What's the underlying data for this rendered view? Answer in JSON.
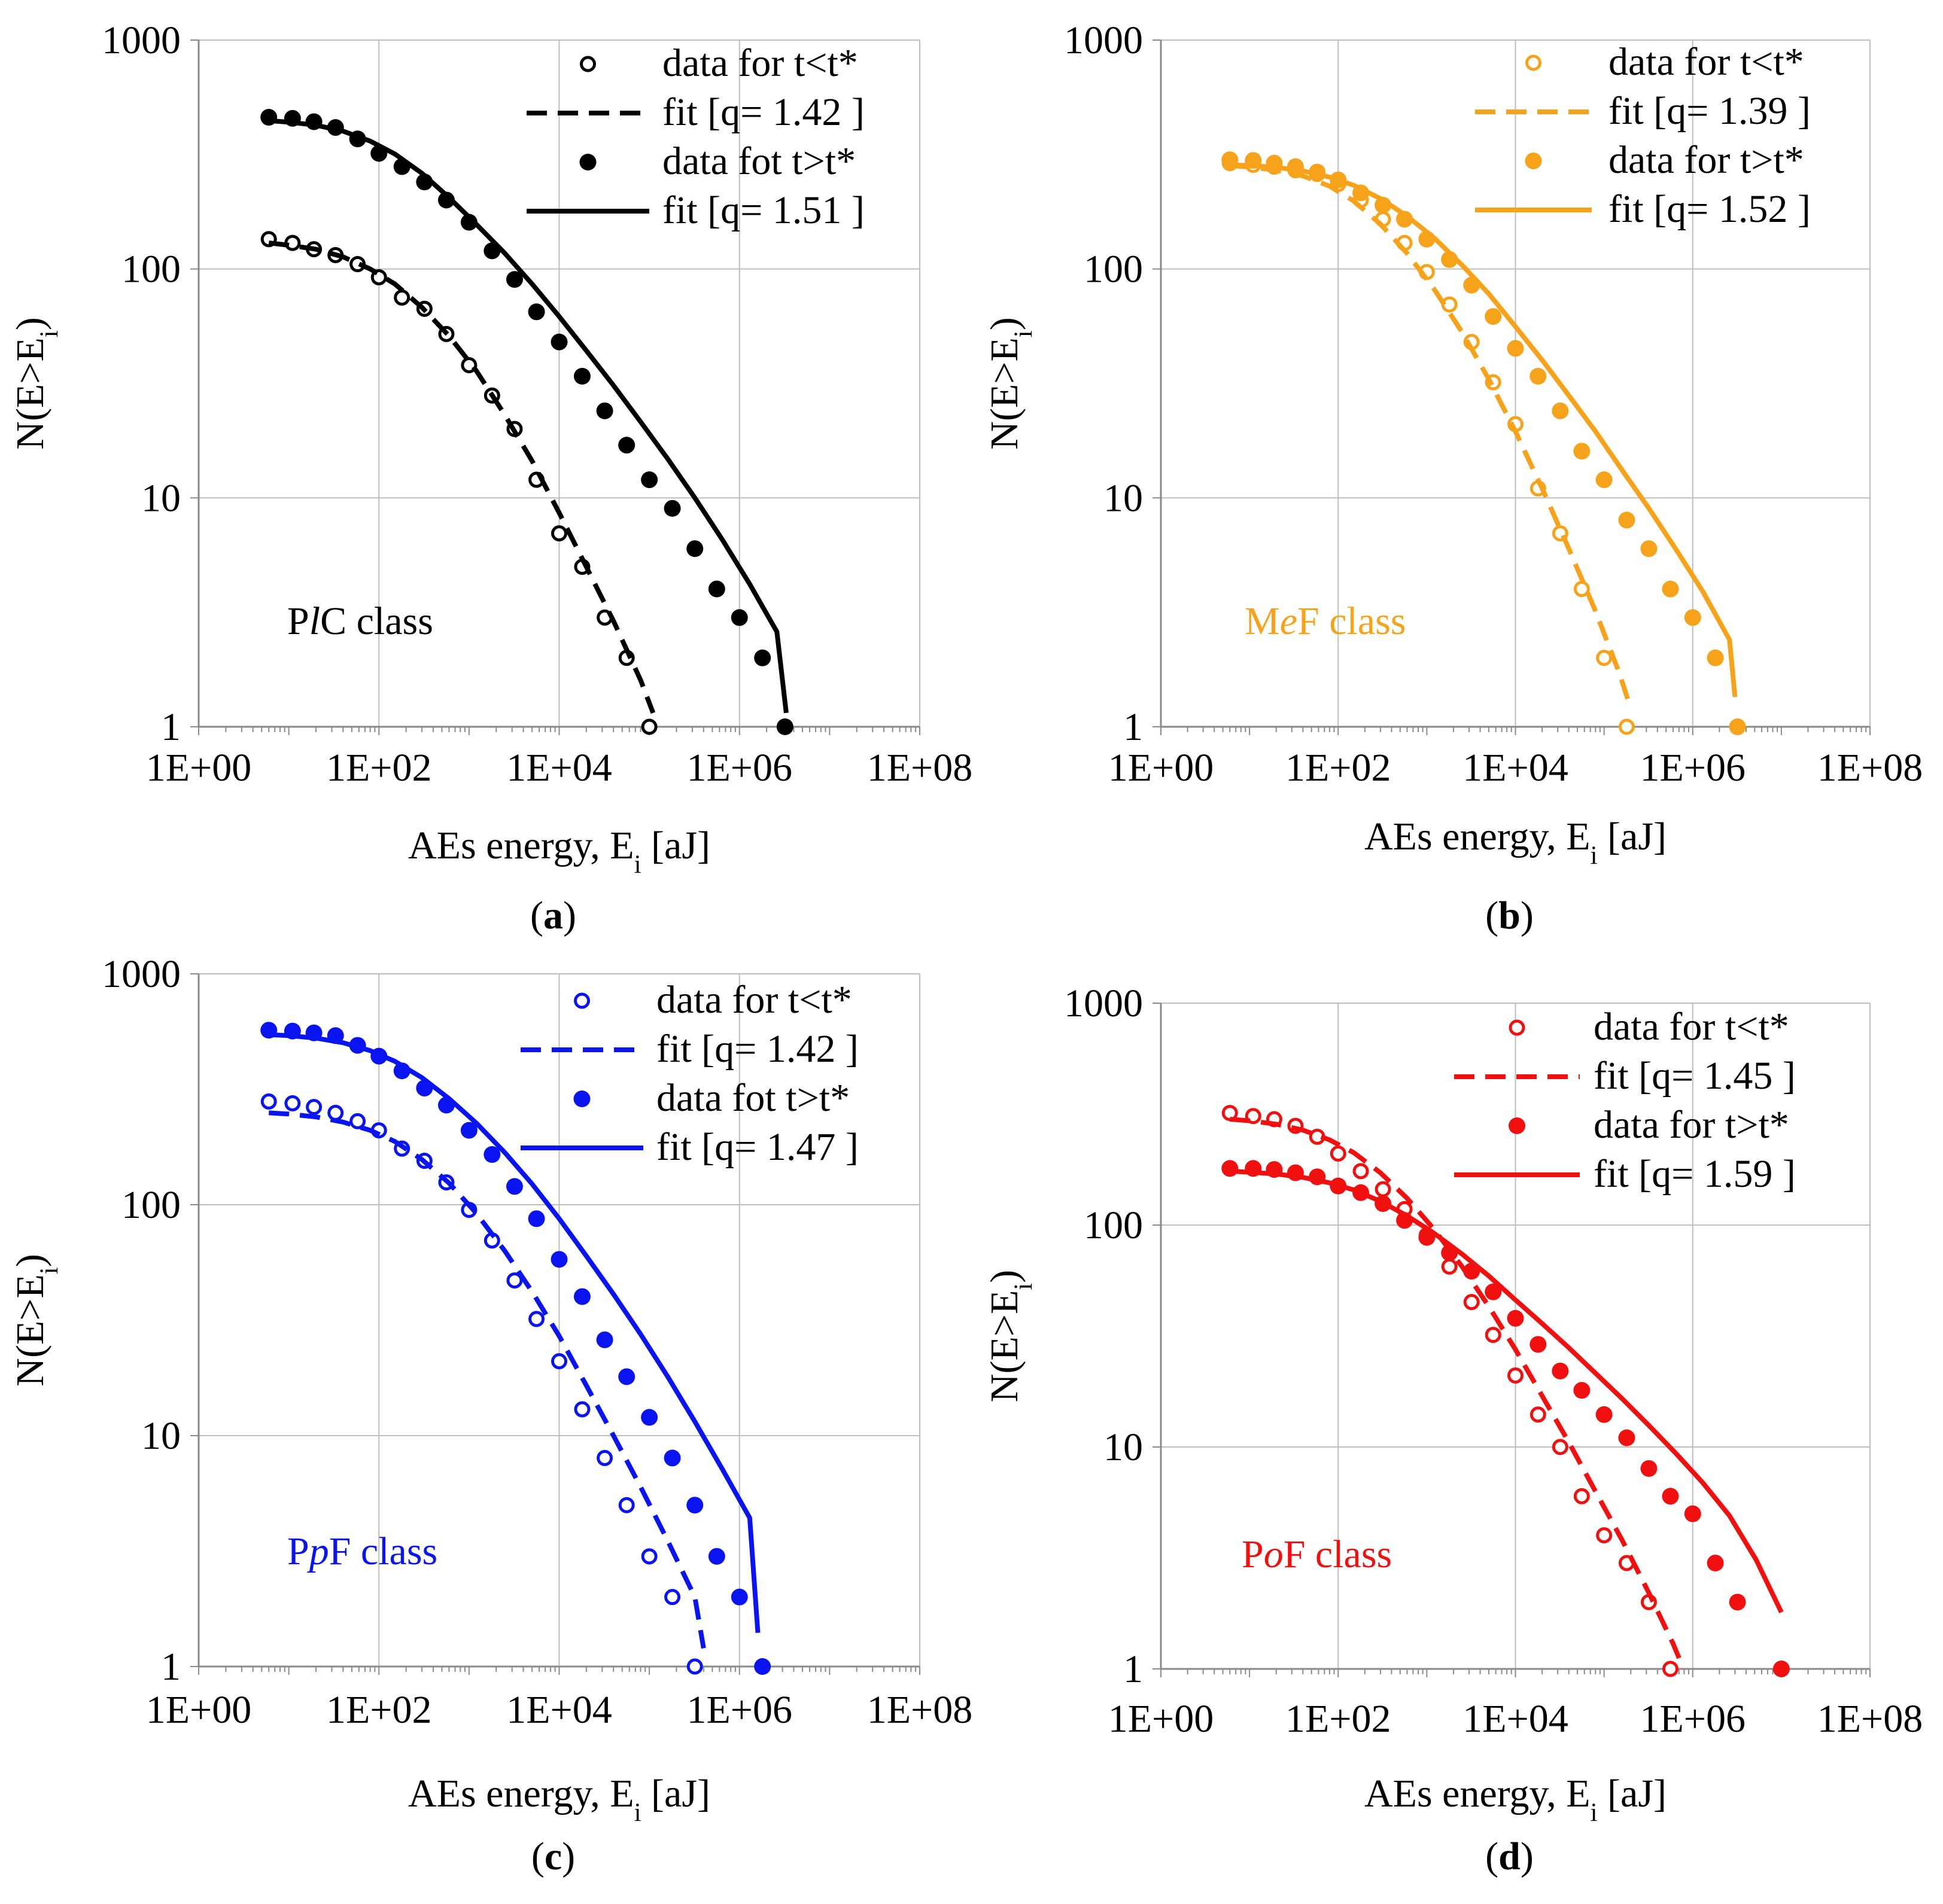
{
  "figure": {
    "panels": [
      {
        "letter": "a",
        "class_label": {
          "prefix": "P",
          "italic": "l",
          "suffix": "C class"
        },
        "color": "#000000",
        "legend": [
          {
            "label": "data for t<t*",
            "kind": "open"
          },
          {
            "label": "fit [q= 1.42 ]",
            "kind": "dashed"
          },
          {
            "label": "data fot t>t*",
            "kind": "filled"
          },
          {
            "label": "fit [q= 1.51 ]",
            "kind": "solid"
          }
        ]
      },
      {
        "letter": "b",
        "class_label": {
          "prefix": "M",
          "italic": "e",
          "suffix": "F class"
        },
        "color": "#F7A21B",
        "legend": [
          {
            "label": "data for t<t*",
            "kind": "open"
          },
          {
            "label": "fit [q= 1.39 ]",
            "kind": "dashed"
          },
          {
            "label": "data for t>t*",
            "kind": "filled"
          },
          {
            "label": "fit [q= 1.52 ]",
            "kind": "solid"
          }
        ]
      },
      {
        "letter": "c",
        "class_label": {
          "prefix": "P",
          "italic": "p",
          "suffix": "F class"
        },
        "color": "#0A14F0",
        "legend": [
          {
            "label": "data for t<t*",
            "kind": "open"
          },
          {
            "label": "fit [q= 1.42 ]",
            "kind": "dashed"
          },
          {
            "label": "data fot t>t*",
            "kind": "filled"
          },
          {
            "label": "fit [q= 1.47 ]",
            "kind": "solid"
          }
        ]
      },
      {
        "letter": "d",
        "class_label": {
          "prefix": "P",
          "italic": "o",
          "suffix": "F class"
        },
        "color": "#F01010",
        "legend": [
          {
            "label": "data for t<t*",
            "kind": "open"
          },
          {
            "label": "fit [q= 1.45 ]",
            "kind": "dashed"
          },
          {
            "label": "data for t>t*",
            "kind": "filled"
          },
          {
            "label": "fit [q= 1.59 ]",
            "kind": "solid"
          }
        ]
      }
    ]
  },
  "chart_data": [
    {
      "type": "scatter",
      "title": "(a) PlC class",
      "xlabel": "AEs energy, Ei [aJ]",
      "ylabel": "N(E>Ei)",
      "xscale": "log",
      "yscale": "log",
      "xlim": [
        1,
        100000000
      ],
      "ylim": [
        1,
        1000
      ],
      "xticks": [
        "1E+00",
        "1E+02",
        "1E+04",
        "1E+06",
        "1E+08"
      ],
      "yticks": [
        "1",
        "10",
        "100",
        "1000"
      ],
      "grid": true,
      "legend_position": "top-right",
      "series": [
        {
          "name": "data for t<t*",
          "style": "open-marker",
          "x": [
            6,
            11,
            19,
            33,
            58,
            100,
            180,
            320,
            560,
            1000,
            1800,
            3200,
            5600,
            10000,
            18000,
            32000,
            56000,
            100000
          ],
          "y": [
            135,
            130,
            122,
            115,
            105,
            92,
            75,
            67,
            52,
            38,
            28,
            20,
            12,
            7,
            5,
            3,
            2,
            1
          ]
        },
        {
          "name": "fit [q= 1.42 ]",
          "style": "dashed-line",
          "q": 1.42,
          "x": [
            6,
            10,
            20,
            40,
            80,
            150,
            300,
            600,
            1200,
            2500,
            5000,
            10000,
            20000,
            40000,
            80000,
            110000
          ],
          "y": [
            130,
            127,
            122,
            113,
            100,
            86,
            68,
            51,
            36,
            23,
            14.5,
            8.6,
            5.0,
            2.9,
            1.6,
            1.15
          ]
        },
        {
          "name": "data fot t>t*",
          "style": "filled-marker",
          "x": [
            6,
            11,
            19,
            33,
            58,
            100,
            180,
            320,
            560,
            1000,
            1800,
            3200,
            5600,
            10000,
            18000,
            32000,
            56000,
            100000,
            180000,
            320000,
            560000,
            1000000,
            1800000,
            3200000
          ],
          "y": [
            460,
            455,
            440,
            415,
            370,
            320,
            280,
            240,
            200,
            160,
            120,
            90,
            65,
            48,
            34,
            24,
            17,
            12,
            9,
            6,
            4,
            3,
            2,
            1
          ]
        },
        {
          "name": "fit [q= 1.51 ]",
          "style": "solid-line",
          "q": 1.51,
          "x": [
            6,
            10,
            20,
            40,
            80,
            150,
            300,
            600,
            1200,
            2500,
            5000,
            10000,
            20000,
            40000,
            80000,
            160000,
            320000,
            640000,
            1300000,
            2600000,
            3300000
          ],
          "y": [
            445,
            438,
            425,
            400,
            362,
            318,
            262,
            205,
            157,
            117,
            86,
            62,
            44,
            31,
            21.5,
            14.8,
            10,
            6.6,
            4.2,
            2.6,
            1.15
          ]
        }
      ]
    },
    {
      "type": "scatter",
      "title": "(b) MeF class",
      "xlabel": "AEs energy, Ei [aJ]",
      "ylabel": "N(E>Ei)",
      "xscale": "log",
      "yscale": "log",
      "xlim": [
        1,
        100000000
      ],
      "ylim": [
        1,
        1000
      ],
      "xticks": [
        "1E+00",
        "1E+02",
        "1E+04",
        "1E+06",
        "1E+08"
      ],
      "yticks": [
        "1",
        "10",
        "100",
        "1000"
      ],
      "grid": true,
      "legend_position": "top-right",
      "series": [
        {
          "name": "data for t<t*",
          "style": "open-marker",
          "x": [
            6,
            11,
            19,
            33,
            58,
            100,
            180,
            320,
            560,
            1000,
            1800,
            3200,
            5600,
            10000,
            18000,
            32000,
            56000,
            100000,
            180000
          ],
          "y": [
            290,
            285,
            280,
            270,
            260,
            235,
            200,
            165,
            130,
            97,
            70,
            48,
            32,
            21,
            11,
            7,
            4,
            2,
            1
          ]
        },
        {
          "name": "fit [q= 1.39 ]",
          "style": "dashed-line",
          "q": 1.39,
          "x": [
            6,
            10,
            20,
            40,
            80,
            150,
            300,
            600,
            1200,
            2500,
            5000,
            10000,
            20000,
            40000,
            80000,
            150000,
            200000
          ],
          "y": [
            283,
            279,
            270,
            255,
            230,
            198,
            157,
            117,
            82,
            53,
            33,
            19.5,
            11,
            6,
            3.2,
            1.7,
            1.2
          ]
        },
        {
          "name": "data for t>t*",
          "style": "filled-marker",
          "x": [
            6,
            11,
            19,
            33,
            58,
            100,
            180,
            320,
            560,
            1000,
            1800,
            3200,
            5600,
            10000,
            18000,
            32000,
            56000,
            100000,
            180000,
            320000,
            560000,
            1000000,
            1800000,
            3200000
          ],
          "y": [
            300,
            298,
            290,
            280,
            265,
            245,
            215,
            190,
            165,
            135,
            110,
            85,
            62,
            45,
            34,
            24,
            16,
            12,
            8,
            6,
            4,
            3,
            2,
            1
          ]
        },
        {
          "name": "fit [q= 1.52 ]",
          "style": "solid-line",
          "q": 1.52,
          "x": [
            6,
            10,
            20,
            40,
            80,
            150,
            300,
            600,
            1200,
            2500,
            5000,
            10000,
            20000,
            40000,
            80000,
            160000,
            320000,
            640000,
            1300000,
            2600000,
            3000000
          ],
          "y": [
            285,
            283,
            278,
            268,
            252,
            232,
            203,
            170,
            137,
            104,
            78,
            56,
            40,
            28,
            19.5,
            13.2,
            9,
            6,
            3.9,
            2.4,
            1.35
          ]
        }
      ]
    },
    {
      "type": "scatter",
      "title": "(c) PpF class",
      "xlabel": "AEs energy, Ei [aJ]",
      "ylabel": "N(E>Ei)",
      "xscale": "log",
      "yscale": "log",
      "xlim": [
        1,
        100000000
      ],
      "ylim": [
        1,
        1000
      ],
      "xticks": [
        "1E+00",
        "1E+02",
        "1E+04",
        "1E+06",
        "1E+08"
      ],
      "yticks": [
        "1",
        "10",
        "100",
        "1000"
      ],
      "grid": true,
      "legend_position": "top-right",
      "series": [
        {
          "name": "data for t<t*",
          "style": "open-marker",
          "x": [
            6,
            11,
            19,
            33,
            58,
            100,
            180,
            320,
            560,
            1000,
            1800,
            3200,
            5600,
            10000,
            18000,
            32000,
            56000,
            100000,
            180000,
            320000
          ],
          "y": [
            280,
            275,
            265,
            250,
            230,
            210,
            175,
            155,
            125,
            95,
            70,
            47,
            32,
            21,
            13,
            8,
            5,
            3,
            2,
            1
          ]
        },
        {
          "name": "fit [q= 1.42 ]",
          "style": "dashed-line",
          "q": 1.42,
          "x": [
            6,
            10,
            20,
            40,
            80,
            150,
            300,
            600,
            1200,
            2500,
            5000,
            10000,
            20000,
            40000,
            80000,
            160000,
            320000,
            400000
          ],
          "y": [
            250,
            247,
            240,
            228,
            210,
            188,
            157,
            124,
            92,
            63,
            42,
            27,
            16.5,
            10,
            6,
            3.5,
            2,
            1.2
          ]
        },
        {
          "name": "data fot t>t*",
          "style": "filled-marker",
          "x": [
            6,
            11,
            19,
            33,
            58,
            100,
            180,
            320,
            560,
            1000,
            1800,
            3200,
            5600,
            10000,
            18000,
            32000,
            56000,
            100000,
            180000,
            320000,
            560000,
            1000000,
            1800000
          ],
          "y": [
            570,
            565,
            555,
            540,
            490,
            440,
            380,
            320,
            270,
            210,
            165,
            120,
            87,
            58,
            40,
            26,
            18,
            12,
            8,
            5,
            3,
            2,
            1
          ]
        },
        {
          "name": "fit [q= 1.47 ]",
          "style": "solid-line",
          "q": 1.47,
          "x": [
            6,
            10,
            20,
            40,
            80,
            150,
            300,
            600,
            1200,
            2500,
            5000,
            10000,
            20000,
            40000,
            80000,
            160000,
            320000,
            640000,
            1300000,
            1600000
          ],
          "y": [
            545,
            540,
            527,
            503,
            465,
            418,
            355,
            288,
            226,
            168,
            123,
            87,
            60,
            41,
            27.5,
            18,
            11.5,
            7.2,
            4.4,
            1.4
          ]
        }
      ]
    },
    {
      "type": "scatter",
      "title": "(d) PoF class",
      "xlabel": "AEs energy, Ei [aJ]",
      "ylabel": "N(E>Ei)",
      "xscale": "log",
      "yscale": "log",
      "xlim": [
        1,
        100000000
      ],
      "ylim": [
        1,
        1000
      ],
      "xticks": [
        "1E+00",
        "1E+02",
        "1E+04",
        "1E+06",
        "1E+08"
      ],
      "yticks": [
        "1",
        "10",
        "100",
        "1000"
      ],
      "grid": true,
      "legend_position": "top-right",
      "series": [
        {
          "name": "data for t<t*",
          "style": "open-marker",
          "x": [
            6,
            11,
            19,
            33,
            58,
            100,
            180,
            320,
            560,
            1000,
            1800,
            3200,
            5600,
            10000,
            18000,
            32000,
            56000,
            100000,
            180000,
            320000,
            560000
          ],
          "y": [
            320,
            310,
            300,
            280,
            250,
            210,
            175,
            145,
            118,
            90,
            65,
            45,
            32,
            21,
            14,
            10,
            6,
            4,
            3,
            2,
            1
          ]
        },
        {
          "name": "fit [q= 1.45 ]",
          "style": "dashed-line",
          "q": 1.45,
          "x": [
            6,
            10,
            20,
            40,
            80,
            150,
            300,
            600,
            1200,
            2500,
            5000,
            10000,
            20000,
            40000,
            80000,
            160000,
            320000,
            600000,
            750000
          ],
          "y": [
            300,
            295,
            285,
            268,
            242,
            212,
            172,
            132,
            96,
            65,
            43,
            27.5,
            17,
            10.5,
            6.3,
            3.8,
            2.2,
            1.3,
            1.05
          ]
        },
        {
          "name": "data for t>t*",
          "style": "filled-marker",
          "x": [
            6,
            11,
            19,
            33,
            58,
            100,
            180,
            320,
            560,
            1000,
            1800,
            3200,
            5600,
            10000,
            18000,
            32000,
            56000,
            100000,
            180000,
            320000,
            560000,
            1000000,
            1800000,
            3200000,
            10000000
          ],
          "y": [
            180,
            180,
            178,
            172,
            165,
            150,
            140,
            125,
            105,
            88,
            75,
            62,
            50,
            38,
            29,
            22,
            18,
            14,
            11,
            8,
            6,
            5,
            3,
            2,
            1
          ]
        },
        {
          "name": "fit [q= 1.59 ]",
          "style": "solid-line",
          "q": 1.59,
          "x": [
            6,
            10,
            20,
            40,
            80,
            150,
            300,
            600,
            1200,
            2500,
            5000,
            10000,
            20000,
            40000,
            80000,
            160000,
            320000,
            640000,
            1300000,
            2600000,
            5200000,
            10000000
          ],
          "y": [
            175,
            173,
            170,
            164,
            155,
            144,
            128,
            110,
            92,
            74,
            59,
            46,
            36,
            28,
            21.5,
            16.5,
            12.5,
            9.4,
            6.9,
            4.9,
            3.1,
            1.8
          ]
        }
      ]
    }
  ]
}
